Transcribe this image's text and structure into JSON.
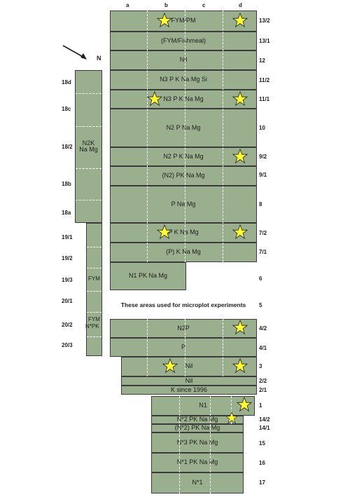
{
  "columns": [
    "a",
    "b",
    "c",
    "d"
  ],
  "north": "N",
  "note": "These areas used for microplot experiments",
  "plots_main": [
    {
      "id": "13/2",
      "label": "FYM/PM"
    },
    {
      "id": "13/1",
      "label": "(FYM/Fishmeal)"
    },
    {
      "id": "12",
      "label": "Nil"
    },
    {
      "id": "11/2",
      "label": "N3 P K Na Mg Si"
    },
    {
      "id": "11/1",
      "label": "N3 P K Na Mg"
    },
    {
      "id": "10",
      "label": "N2 P Na Mg"
    },
    {
      "id": "9/2",
      "label": "N2 P K Na Mg"
    },
    {
      "id": "9/1",
      "label": "(N2) PK Na Mg"
    },
    {
      "id": "8",
      "label": "P Na Mg"
    },
    {
      "id": "7/2",
      "label": "P K Na Mg"
    },
    {
      "id": "7/1",
      "label": "(P) K Na Mg"
    },
    {
      "id": "6",
      "label": "N1 PK Na Mg"
    },
    {
      "id": "5",
      "label": ""
    },
    {
      "id": "4/2",
      "label": "N2P"
    },
    {
      "id": "4/1",
      "label": "P"
    },
    {
      "id": "3",
      "label": "Nil"
    },
    {
      "id": "2/2",
      "label": "Nil"
    },
    {
      "id": "2/1",
      "label": "K since 1996"
    },
    {
      "id": "1",
      "label": "N1"
    },
    {
      "id": "14/2",
      "label": "N*2 PK Na Mg"
    },
    {
      "id": "14/1",
      "label": "(N*2) PK Na Mg"
    },
    {
      "id": "15",
      "label": "N*3 PK Na Mg"
    },
    {
      "id": "16",
      "label": "N*1 PK Na Mg"
    },
    {
      "id": "17",
      "label": "N*1"
    }
  ],
  "left_labels": [
    "18d",
    "18c",
    "18/2",
    "18b",
    "18a",
    "19/1",
    "19/2",
    "19/3",
    "20/1",
    "20/2",
    "20/3"
  ],
  "left_plots": {
    "p18_2": "N2K Na Mg",
    "p19_3": "FYM",
    "p20_2a": "FYM",
    "p20_2b": "N*PK"
  },
  "legend_color": "#9aaf8e",
  "star_color": "#ffff33"
}
